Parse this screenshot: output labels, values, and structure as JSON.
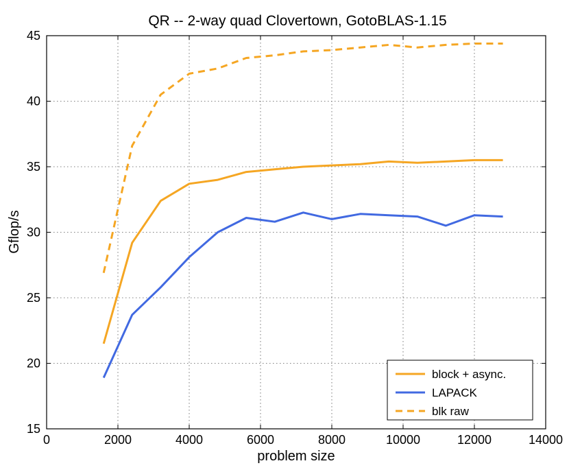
{
  "chart_data": {
    "type": "line",
    "title": "QR -- 2-way quad Clovertown, GotoBLAS-1.15",
    "xlabel": "problem size",
    "ylabel": "Gflop/s",
    "xlim": [
      0,
      14000
    ],
    "ylim": [
      15,
      45
    ],
    "xticks": [
      0,
      2000,
      4000,
      6000,
      8000,
      10000,
      12000,
      14000
    ],
    "yticks": [
      15,
      20,
      25,
      30,
      35,
      40,
      45
    ],
    "grid": true,
    "legend_position": "bottom-right",
    "x": [
      1600,
      2400,
      3200,
      4000,
      4800,
      5600,
      6400,
      7200,
      8000,
      8800,
      9600,
      10400,
      11200,
      12000,
      12800
    ],
    "series": [
      {
        "name": "block + async.",
        "color": "#f5a623",
        "style": "solid",
        "values": [
          21.5,
          29.2,
          32.4,
          33.7,
          34.0,
          34.6,
          34.8,
          35.0,
          35.1,
          35.2,
          35.4,
          35.3,
          35.4,
          35.5,
          35.5
        ]
      },
      {
        "name": "LAPACK",
        "color": "#4169e1",
        "style": "solid",
        "values": [
          18.9,
          23.7,
          25.8,
          28.1,
          30.0,
          31.1,
          30.8,
          31.5,
          31.0,
          31.4,
          31.3,
          31.2,
          30.5,
          31.3,
          31.2
        ]
      },
      {
        "name": "blk raw",
        "color": "#f5a623",
        "style": "dashed",
        "values": [
          26.9,
          36.6,
          40.5,
          42.1,
          42.5,
          43.3,
          43.5,
          43.8,
          43.9,
          44.1,
          44.3,
          44.1,
          44.3,
          44.4,
          44.4
        ]
      }
    ]
  }
}
